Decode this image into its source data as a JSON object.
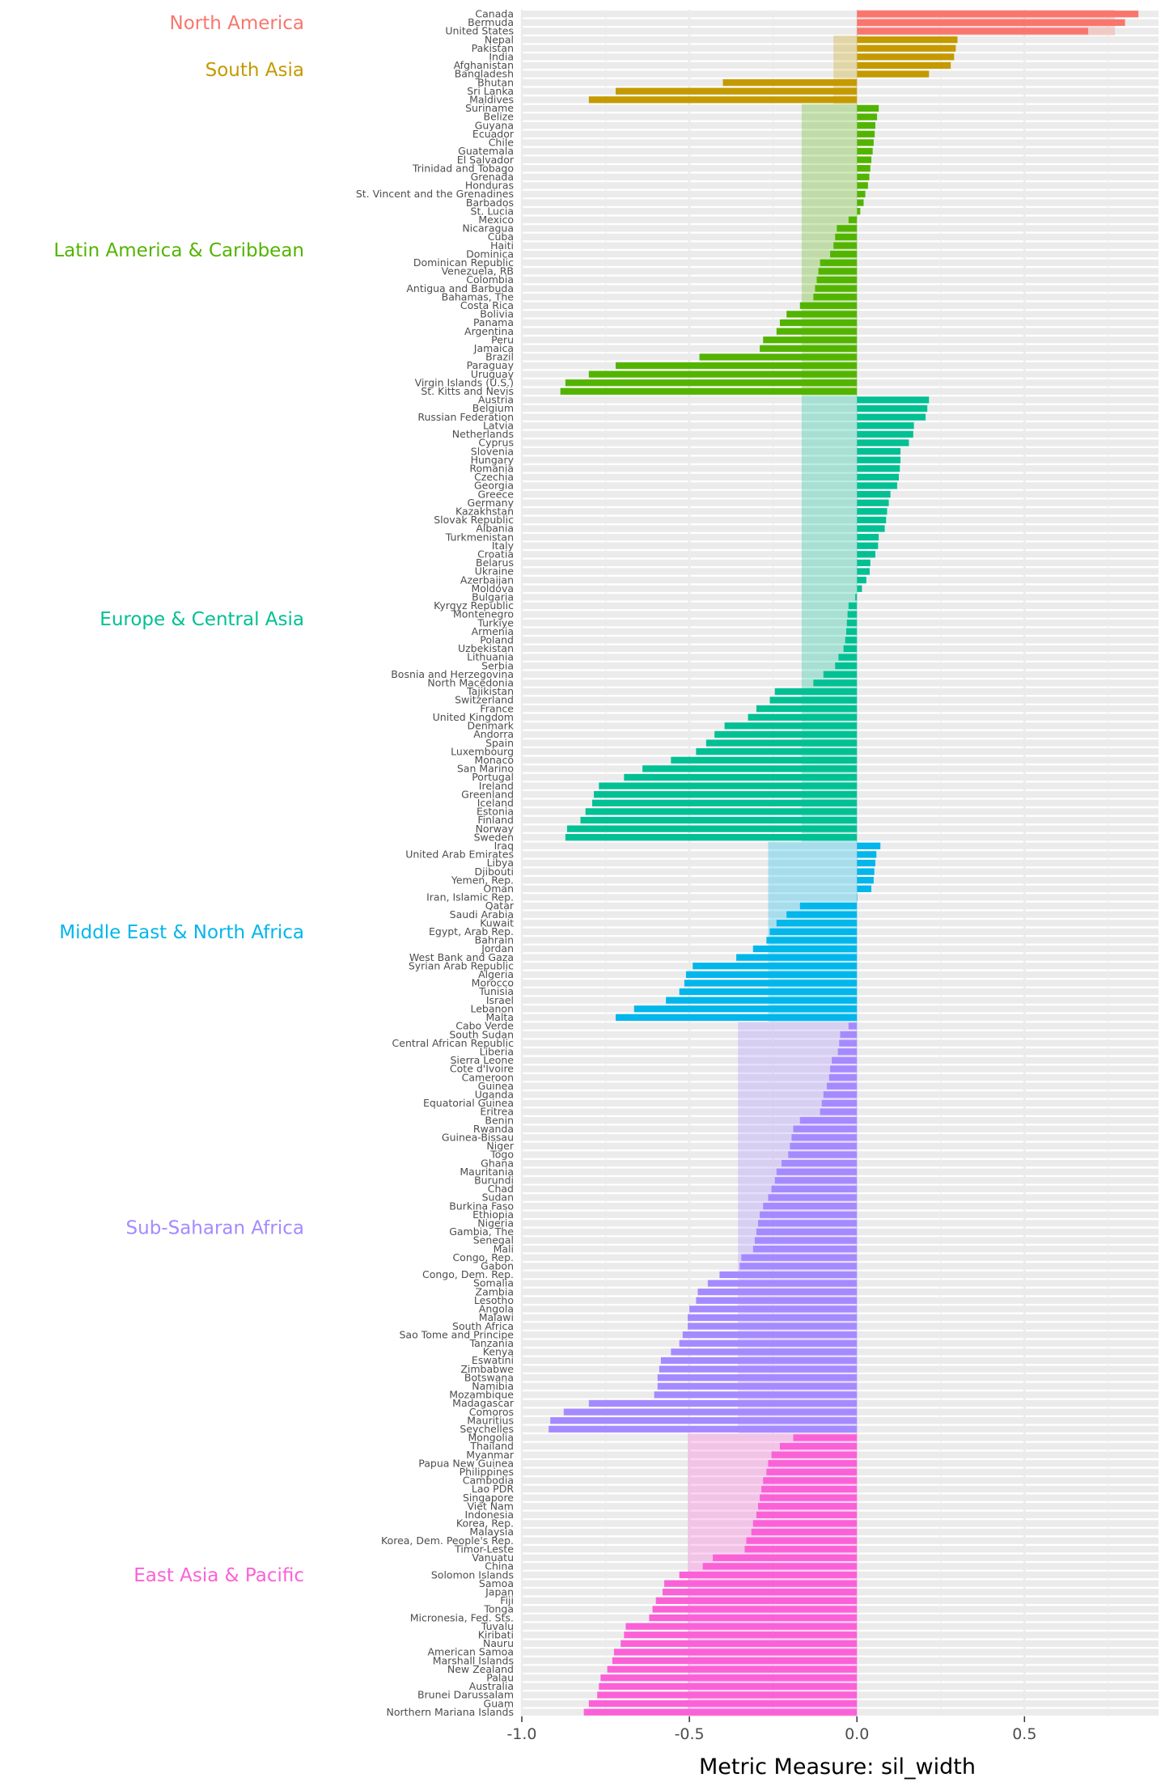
{
  "chart_data": {
    "type": "bar",
    "orientation": "horizontal",
    "xlabel": "Metric Measure: sil_width",
    "xlim": [
      -1.0,
      0.9
    ],
    "xticks": [
      -1.0,
      -0.5,
      0.0,
      0.5
    ],
    "xtick_labels": [
      "-1.0",
      "-0.5",
      "0.0",
      "0.5"
    ],
    "grid": true,
    "legend": "none",
    "groups": [
      {
        "name": "North America",
        "color": "#F8766D",
        "band": 0.77,
        "countries": [
          "Canada",
          "Bermuda",
          "United States"
        ],
        "values": [
          0.84,
          0.8,
          0.69
        ]
      },
      {
        "name": "South Asia",
        "color": "#C49A00",
        "band": -0.07,
        "countries": [
          "Nepal",
          "Pakistan",
          "India",
          "Afghanistan",
          "Bangladesh",
          "Bhutan",
          "Sri Lanka",
          "Maldives"
        ],
        "values": [
          0.3,
          0.295,
          0.29,
          0.28,
          0.215,
          -0.4,
          -0.72,
          -0.8
        ]
      },
      {
        "name": "Latin America & Caribbean",
        "color": "#53B400",
        "band": -0.165,
        "countries": [
          "Suriname",
          "Belize",
          "Guyana",
          "Ecuador",
          "Chile",
          "Guatemala",
          "El Salvador",
          "Trinidad and Tobago",
          "Grenada",
          "Honduras",
          "St. Vincent and the Grenadines",
          "Barbados",
          "St. Lucia",
          "Mexico",
          "Nicaragua",
          "Cuba",
          "Haiti",
          "Dominica",
          "Dominican Republic",
          "Venezuela, RB",
          "Colombia",
          "Antigua and Barbuda",
          "Bahamas, The",
          "Costa Rica",
          "Bolivia",
          "Panama",
          "Argentina",
          "Peru",
          "Jamaica",
          "Brazil",
          "Paraguay",
          "Uruguay",
          "Virgin Islands (U.S.)",
          "St. Kitts and Nevis"
        ],
        "values": [
          0.065,
          0.06,
          0.055,
          0.053,
          0.05,
          0.047,
          0.043,
          0.04,
          0.037,
          0.033,
          0.025,
          0.02,
          0.01,
          -0.025,
          -0.06,
          -0.065,
          -0.07,
          -0.08,
          -0.11,
          -0.115,
          -0.12,
          -0.125,
          -0.13,
          -0.17,
          -0.21,
          -0.23,
          -0.24,
          -0.28,
          -0.29,
          -0.47,
          -0.72,
          -0.8,
          -0.87,
          -0.885
        ]
      },
      {
        "name": "Europe & Central Asia",
        "color": "#00C094",
        "band": -0.165,
        "countries": [
          "Austria",
          "Belgium",
          "Russian Federation",
          "Latvia",
          "Netherlands",
          "Cyprus",
          "Slovenia",
          "Hungary",
          "Romania",
          "Czechia",
          "Georgia",
          "Greece",
          "Germany",
          "Kazakhstan",
          "Slovak Republic",
          "Albania",
          "Turkmenistan",
          "Italy",
          "Croatia",
          "Belarus",
          "Ukraine",
          "Azerbaijan",
          "Moldova",
          "Bulgaria",
          "Kyrgyz Republic",
          "Montenegro",
          "Turkiye",
          "Armenia",
          "Poland",
          "Uzbekistan",
          "Lithuania",
          "Serbia",
          "Bosnia and Herzegovina",
          "North Macedonia",
          "Tajikistan",
          "Switzerland",
          "France",
          "United Kingdom",
          "Denmark",
          "Andorra",
          "Spain",
          "Luxembourg",
          "Monaco",
          "San Marino",
          "Portugal",
          "Ireland",
          "Greenland",
          "Iceland",
          "Estonia",
          "Finland",
          "Norway",
          "Sweden"
        ],
        "values": [
          0.215,
          0.21,
          0.205,
          0.17,
          0.168,
          0.155,
          0.13,
          0.13,
          0.128,
          0.125,
          0.12,
          0.1,
          0.095,
          0.09,
          0.087,
          0.083,
          0.065,
          0.063,
          0.055,
          0.04,
          0.038,
          0.028,
          0.015,
          -0.005,
          -0.025,
          -0.028,
          -0.03,
          -0.032,
          -0.035,
          -0.04,
          -0.055,
          -0.065,
          -0.1,
          -0.13,
          -0.245,
          -0.26,
          -0.3,
          -0.325,
          -0.395,
          -0.425,
          -0.45,
          -0.48,
          -0.555,
          -0.64,
          -0.695,
          -0.77,
          -0.785,
          -0.79,
          -0.81,
          -0.825,
          -0.865,
          -0.87
        ]
      },
      {
        "name": "Middle East & North Africa",
        "color": "#00B6EB",
        "band": -0.265,
        "countries": [
          "Iraq",
          "United Arab Emirates",
          "Libya",
          "Djibouti",
          "Yemen, Rep.",
          "Oman",
          "Iran, Islamic Rep.",
          "Qatar",
          "Saudi Arabia",
          "Kuwait",
          "Egypt, Arab Rep.",
          "Bahrain",
          "Jordan",
          "West Bank and Gaza",
          "Syrian Arab Republic",
          "Algeria",
          "Morocco",
          "Tunisia",
          "Israel",
          "Lebanon",
          "Malta"
        ],
        "values": [
          0.07,
          0.058,
          0.055,
          0.052,
          0.05,
          0.043,
          0.0,
          -0.17,
          -0.21,
          -0.24,
          -0.26,
          -0.27,
          -0.31,
          -0.36,
          -0.49,
          -0.51,
          -0.515,
          -0.53,
          -0.57,
          -0.665,
          -0.72
        ]
      },
      {
        "name": "Sub-Saharan Africa",
        "color": "#A58AFF",
        "band": -0.355,
        "countries": [
          "Cabo Verde",
          "South Sudan",
          "Central African Republic",
          "Liberia",
          "Sierra Leone",
          "Cote d'Ivoire",
          "Cameroon",
          "Guinea",
          "Uganda",
          "Equatorial Guinea",
          "Eritrea",
          "Benin",
          "Rwanda",
          "Guinea-Bissau",
          "Niger",
          "Togo",
          "Ghana",
          "Mauritania",
          "Burundi",
          "Chad",
          "Sudan",
          "Burkina Faso",
          "Ethiopia",
          "Nigeria",
          "Gambia, The",
          "Senegal",
          "Mali",
          "Congo, Rep.",
          "Gabon",
          "Congo, Dem. Rep.",
          "Somalia",
          "Zambia",
          "Lesotho",
          "Angola",
          "Malawi",
          "South Africa",
          "Sao Tome and Principe",
          "Tanzania",
          "Kenya",
          "Eswatini",
          "Zimbabwe",
          "Botswana",
          "Namibia",
          "Mozambique",
          "Madagascar",
          "Comoros",
          "Mauritius",
          "Seychelles"
        ],
        "values": [
          -0.025,
          -0.05,
          -0.053,
          -0.057,
          -0.075,
          -0.08,
          -0.083,
          -0.09,
          -0.1,
          -0.105,
          -0.11,
          -0.17,
          -0.19,
          -0.195,
          -0.2,
          -0.205,
          -0.225,
          -0.24,
          -0.245,
          -0.255,
          -0.265,
          -0.28,
          -0.29,
          -0.295,
          -0.3,
          -0.305,
          -0.31,
          -0.345,
          -0.35,
          -0.41,
          -0.445,
          -0.475,
          -0.48,
          -0.5,
          -0.505,
          -0.505,
          -0.52,
          -0.53,
          -0.555,
          -0.585,
          -0.59,
          -0.595,
          -0.595,
          -0.605,
          -0.8,
          -0.875,
          -0.915,
          -0.92
        ]
      },
      {
        "name": "East Asia & Pacific",
        "color": "#FB61D7",
        "band": -0.505,
        "countries": [
          "Mongolia",
          "Thailand",
          "Myanmar",
          "Papua New Guinea",
          "Philippines",
          "Cambodia",
          "Lao PDR",
          "Singapore",
          "Viet Nam",
          "Indonesia",
          "Korea, Rep.",
          "Malaysia",
          "Korea, Dem. People's Rep.",
          "Timor-Leste",
          "Vanuatu",
          "China",
          "Solomon Islands",
          "Samoa",
          "Japan",
          "Fiji",
          "Tonga",
          "Micronesia, Fed. Sts.",
          "Tuvalu",
          "Kiribati",
          "Nauru",
          "American Samoa",
          "Marshall Islands",
          "New Zealand",
          "Palau",
          "Australia",
          "Brunei Darussalam",
          "Guam",
          "Northern Mariana Islands"
        ],
        "values": [
          -0.19,
          -0.23,
          -0.255,
          -0.265,
          -0.27,
          -0.28,
          -0.285,
          -0.29,
          -0.295,
          -0.3,
          -0.31,
          -0.315,
          -0.33,
          -0.335,
          -0.43,
          -0.46,
          -0.53,
          -0.575,
          -0.58,
          -0.6,
          -0.61,
          -0.62,
          -0.69,
          -0.695,
          -0.705,
          -0.725,
          -0.73,
          -0.745,
          -0.765,
          -0.77,
          -0.775,
          -0.8,
          -0.815
        ]
      }
    ]
  }
}
